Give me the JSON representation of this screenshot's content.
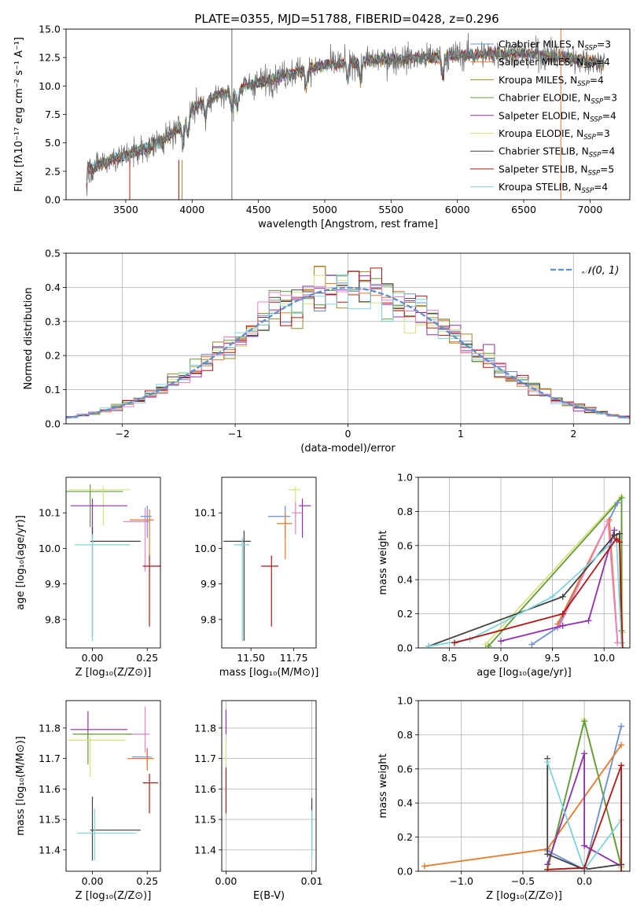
{
  "title": "PLATE=0355, MJD=51788, FIBERID=0428, z=0.296",
  "colors": {
    "chabrier_miles": "#6b8fd6",
    "salpeter_miles": "#e8772a",
    "kroupa_miles": "#9a8a2a",
    "chabrier_elodie": "#5f9a3a",
    "salpeter_elodie": "#8f2fb0",
    "kroupa_elodie": "#d8e07a",
    "chabrier_stelib": "#404040",
    "salpeter_stelib": "#b01414",
    "kroupa_stelib": "#7fd3dc",
    "data": "#6a6a6a",
    "pink": "#ee82c0",
    "gauss": "#5b8fd0"
  },
  "chart_data": [
    {
      "id": "spectrum",
      "type": "line",
      "xlabel": "wavelength [Angstrom, rest frame]",
      "ylabel": "Flux [fλ10⁻¹⁷ erg cm⁻² s⁻¹ A⁻¹]",
      "xlim": [
        3050,
        7300
      ],
      "ylim": [
        0,
        15
      ],
      "xticks": [
        3500,
        4000,
        4500,
        5000,
        5500,
        6000,
        6500,
        7000
      ],
      "yticks": [
        0.0,
        2.5,
        5.0,
        7.5,
        10.0,
        12.5,
        15.0
      ],
      "legend_placement": "upper right",
      "legend": [
        {
          "label": "Chabrier MILES, N",
          "sub": "SSP",
          "suffix": "=3",
          "color": "#6b8fd6"
        },
        {
          "label": "Salpeter MILES, N",
          "sub": "SSP",
          "suffix": "=4",
          "color": "#e8772a"
        },
        {
          "label": "Kroupa MILES, N",
          "sub": "SSP",
          "suffix": "=4",
          "color": "#9a8a2a"
        },
        {
          "label": "Chabrier ELODIE, N",
          "sub": "SSP",
          "suffix": "=3",
          "color": "#5f9a3a"
        },
        {
          "label": "Salpeter ELODIE, N",
          "sub": "SSP",
          "suffix": "=4",
          "color": "#8f2fb0"
        },
        {
          "label": "Kroupa ELODIE, N",
          "sub": "SSP",
          "suffix": "=3",
          "color": "#d8e07a"
        },
        {
          "label": "Chabrier STELIB, N",
          "sub": "SSP",
          "suffix": "=4",
          "color": "#404040"
        },
        {
          "label": "Salpeter STELIB, N",
          "sub": "SSP",
          "suffix": "=5",
          "color": "#b01414"
        },
        {
          "label": "Kroupa STELIB, N",
          "sub": "SSP",
          "suffix": "=4",
          "color": "#7fd3dc"
        }
      ],
      "continuum": [
        [
          3200,
          0
        ],
        [
          3210,
          2.6
        ],
        [
          3300,
          3.1
        ],
        [
          3400,
          3.6
        ],
        [
          3500,
          3.9
        ],
        [
          3600,
          4.3
        ],
        [
          3700,
          4.8
        ],
        [
          3800,
          5.4
        ],
        [
          3900,
          6.2
        ],
        [
          4000,
          8.0
        ],
        [
          4100,
          8.7
        ],
        [
          4200,
          9.2
        ],
        [
          4300,
          9.4
        ],
        [
          4400,
          10.0
        ],
        [
          4500,
          10.3
        ],
        [
          4600,
          10.6
        ],
        [
          4700,
          11.0
        ],
        [
          4800,
          11.3
        ],
        [
          4900,
          11.6
        ],
        [
          5000,
          11.8
        ],
        [
          5200,
          12.1
        ],
        [
          5400,
          12.3
        ],
        [
          5600,
          12.4
        ],
        [
          5800,
          12.5
        ],
        [
          6000,
          12.7
        ],
        [
          6200,
          12.8
        ],
        [
          6400,
          12.9
        ],
        [
          6600,
          12.8
        ],
        [
          6800,
          12.5
        ],
        [
          7000,
          12.2
        ],
        [
          7100,
          12.0
        ]
      ]
    },
    {
      "id": "residuals",
      "type": "histogram",
      "xlabel": "(data-model)/error",
      "ylabel": "Normed distribution",
      "xlim": [
        -2.5,
        2.5
      ],
      "ylim": [
        0,
        0.5
      ],
      "xticks": [
        -2,
        -1,
        0,
        1,
        2
      ],
      "yticks": [
        0.0,
        0.1,
        0.2,
        0.3,
        0.4,
        0.5
      ],
      "legend": "𝒩(0, 1)",
      "legend_placement": "upper right",
      "grid": true
    },
    {
      "id": "age_vs_Z",
      "type": "scatter",
      "xlabel": "Z [log₁₀(Z/Z⊙)]",
      "ylabel": "age  [log₁₀(age/yr)]",
      "xlim": [
        -0.12,
        0.31
      ],
      "ylim": [
        9.72,
        10.2
      ],
      "xticks": [
        0.0,
        0.25
      ],
      "yticks": [
        9.8,
        9.9,
        10.0,
        10.1
      ],
      "points": [
        {
          "x": -0.01,
          "y": 10.16,
          "xerr": [
            0.11,
            0.15
          ],
          "yerr": [
            0.1,
            0.02
          ],
          "color": "#5f9a3a"
        },
        {
          "x": 0.05,
          "y": 10.165,
          "xerr": [
            0.16,
            0.12
          ],
          "yerr": [
            0.1,
            0.01
          ],
          "color": "#d8e07a"
        },
        {
          "x": 0.0,
          "y": 10.12,
          "xerr": [
            0.1,
            0.16
          ],
          "yerr": [
            0.09,
            0.02
          ],
          "color": "#8f2fb0"
        },
        {
          "x": 0.24,
          "y": 10.075,
          "xerr": [
            0.1,
            0.02
          ],
          "yerr": [
            0.14,
            0.04
          ],
          "color": "#ee82c0"
        },
        {
          "x": 0.26,
          "y": 10.08,
          "xerr": [
            0.09,
            0.02
          ],
          "yerr": [
            0.1,
            0.03
          ],
          "color": "#e8772a"
        },
        {
          "x": 0.25,
          "y": 10.09,
          "xerr": [
            0.03,
            0.02
          ],
          "yerr": [
            0.06,
            0.03
          ],
          "color": "#6b8fd6"
        },
        {
          "x": 0.0,
          "y": 10.02,
          "xerr": [
            0.01,
            0.22
          ],
          "yerr": [
            0.27,
            0.04
          ],
          "color": "#404040"
        },
        {
          "x": 0.0,
          "y": 10.01,
          "xerr": [
            0.08,
            0.17
          ],
          "yerr": [
            0.27,
            0.03
          ],
          "color": "#7fd3dc"
        },
        {
          "x": 0.26,
          "y": 9.95,
          "xerr": [
            0.03,
            0.06
          ],
          "yerr": [
            0.17,
            0.03
          ],
          "color": "#b01414"
        }
      ]
    },
    {
      "id": "age_vs_mass",
      "type": "scatter",
      "xlabel": "mass [log₁₀(M/M⊙)]",
      "xlim": [
        11.33,
        11.88
      ],
      "ylim": [
        9.72,
        10.2
      ],
      "xticks": [
        11.5,
        11.75
      ],
      "yticks": [
        9.8,
        9.9,
        10.0,
        10.1
      ],
      "points": [
        {
          "x": 11.76,
          "y": 10.165,
          "xerr": [
            0.04,
            0.03
          ],
          "yerr": [
            0.1,
            0.01
          ],
          "color": "#d8e07a"
        },
        {
          "x": 11.8,
          "y": 10.12,
          "xerr": [
            0.02,
            0.05
          ],
          "yerr": [
            0.09,
            0.02
          ],
          "color": "#8f2fb0"
        },
        {
          "x": 11.76,
          "y": 10.1,
          "xerr": [
            0.02,
            0.04
          ],
          "yerr": [
            0.06,
            0.03
          ],
          "color": "#ee82c0"
        },
        {
          "x": 11.7,
          "y": 10.09,
          "xerr": [
            0.1,
            0.03
          ],
          "yerr": [
            0.06,
            0.03
          ],
          "color": "#6b8fd6"
        },
        {
          "x": 11.7,
          "y": 10.07,
          "xerr": [
            0.05,
            0.04
          ],
          "yerr": [
            0.1,
            0.03
          ],
          "color": "#e8772a"
        },
        {
          "x": 11.46,
          "y": 10.02,
          "xerr": [
            0.12,
            0.04
          ],
          "yerr": [
            0.28,
            0.03
          ],
          "color": "#404040"
        },
        {
          "x": 11.45,
          "y": 10.01,
          "xerr": [
            0.05,
            0.04
          ],
          "yerr": [
            0.27,
            0.02
          ],
          "color": "#7fd3dc"
        },
        {
          "x": 11.62,
          "y": 9.95,
          "xerr": [
            0.06,
            0.04
          ],
          "yerr": [
            0.17,
            0.03
          ],
          "color": "#b01414"
        }
      ]
    },
    {
      "id": "weight_vs_age",
      "type": "line",
      "xlabel": "age  [log₁₀(age/yr)]",
      "ylabel": "mass weight",
      "xlim": [
        8.2,
        10.25
      ],
      "ylim": [
        0,
        1
      ],
      "xticks": [
        8.5,
        9.0,
        9.5,
        10.0
      ],
      "yticks": [
        0.0,
        0.2,
        0.4,
        0.6,
        0.8,
        1.0
      ],
      "series": [
        {
          "color": "#d8e07a",
          "x": [
            8.85,
            10.17,
            10.18
          ],
          "y": [
            0.02,
            0.89,
            0.09
          ]
        },
        {
          "color": "#5f9a3a",
          "x": [
            8.88,
            10.17,
            10.17
          ],
          "y": [
            0.01,
            0.88,
            0.1
          ]
        },
        {
          "color": "#6b8fd6",
          "x": [
            9.3,
            9.55,
            10.13
          ],
          "y": [
            0.02,
            0.12,
            0.85
          ]
        },
        {
          "color": "#e8772a",
          "x": [
            9.55,
            10.05,
            10.13
          ],
          "y": [
            0.14,
            0.75,
            0.03
          ]
        },
        {
          "color": "#ee82c0",
          "x": [
            9.57,
            10.04,
            10.13
          ],
          "y": [
            0.13,
            0.74,
            0.03
          ]
        },
        {
          "color": "#8f2fb0",
          "x": [
            9.0,
            9.6,
            9.85,
            10.1
          ],
          "y": [
            0.04,
            0.13,
            0.16,
            0.69
          ]
        },
        {
          "color": "#404040",
          "x": [
            8.3,
            9.6,
            10.1,
            10.15,
            10.17
          ],
          "y": [
            0.01,
            0.3,
            0.66,
            0.67,
            0.03
          ]
        },
        {
          "color": "#7fd3dc",
          "x": [
            8.3,
            8.7,
            9.5,
            10.12,
            10.17
          ],
          "y": [
            0.01,
            0.05,
            0.3,
            0.64,
            0.03
          ]
        },
        {
          "color": "#b01414",
          "x": [
            8.55,
            9.6,
            10.12,
            10.15,
            10.18
          ],
          "y": [
            0.03,
            0.2,
            0.64,
            0.62,
            0.0
          ]
        }
      ]
    },
    {
      "id": "mass_vs_Z",
      "type": "scatter",
      "xlabel": "Z [log₁₀(Z/Z⊙)]",
      "ylabel": "mass [log₁₀(M/M⊙)]",
      "xlim": [
        -0.12,
        0.31
      ],
      "ylim": [
        11.33,
        11.89
      ],
      "xticks": [
        0.0,
        0.25
      ],
      "yticks": [
        11.4,
        11.5,
        11.6,
        11.7,
        11.8
      ],
      "points": [
        {
          "x": -0.02,
          "y": 11.795,
          "xerr": [
            0.08,
            0.18
          ],
          "yerr": [
            0.04,
            0.06
          ],
          "color": "#8f2fb0"
        },
        {
          "x": 0.24,
          "y": 11.78,
          "xerr": [
            0.08,
            0.02
          ],
          "yerr": [
            0.06,
            0.09
          ],
          "color": "#ee82c0"
        },
        {
          "x": -0.02,
          "y": 11.78,
          "xerr": [
            0.07,
            0.2
          ],
          "yerr": [
            0.1,
            0.01
          ],
          "color": "#5f9a3a"
        },
        {
          "x": -0.01,
          "y": 11.76,
          "xerr": [
            0.1,
            0.16
          ],
          "yerr": [
            0.12,
            0.01
          ],
          "color": "#d8e07a"
        },
        {
          "x": 0.25,
          "y": 11.705,
          "xerr": [
            0.07,
            0.02
          ],
          "yerr": [
            0.03,
            0.03
          ],
          "color": "#6b8fd6"
        },
        {
          "x": 0.25,
          "y": 11.7,
          "xerr": [
            0.09,
            0.03
          ],
          "yerr": [
            0.04,
            0.03
          ],
          "color": "#e8772a"
        },
        {
          "x": 0.26,
          "y": 11.62,
          "xerr": [
            0.03,
            0.04
          ],
          "yerr": [
            0.1,
            0.03
          ],
          "color": "#b01414"
        },
        {
          "x": 0.0,
          "y": 11.465,
          "xerr": [
            0.01,
            0.22
          ],
          "yerr": [
            0.1,
            0.11
          ],
          "color": "#404040"
        },
        {
          "x": 0.01,
          "y": 11.455,
          "xerr": [
            0.08,
            0.19
          ],
          "yerr": [
            0.09,
            0.08
          ],
          "color": "#7fd3dc"
        }
      ]
    },
    {
      "id": "mass_vs_EBV",
      "type": "scatter",
      "xlabel": "E(B-V)",
      "xlim": [
        -0.0005,
        0.0105
      ],
      "ylim": [
        11.33,
        11.89
      ],
      "xticks": [
        0.0,
        0.01
      ],
      "yticks": [
        11.4,
        11.5,
        11.6,
        11.7,
        11.8
      ],
      "points": [
        {
          "x": 0.0,
          "y": 11.81,
          "xerr": [
            0,
            0
          ],
          "yerr": [
            0.03,
            0.05
          ],
          "color": "#8f2fb0"
        },
        {
          "x": 0.0,
          "y": 11.72,
          "xerr": [
            0,
            0
          ],
          "yerr": [
            0.04,
            0.04
          ],
          "color": "#d8e07a"
        },
        {
          "x": 0.0,
          "y": 11.6,
          "xerr": [
            0,
            0
          ],
          "yerr": [
            0.08,
            0.07
          ],
          "color": "#b01414"
        },
        {
          "x": 0.01,
          "y": 11.5,
          "xerr": [
            0,
            0
          ],
          "yerr": [
            0.1,
            0.07
          ],
          "color": "#404040"
        },
        {
          "x": 0.01,
          "y": 11.45,
          "xerr": [
            0,
            0
          ],
          "yerr": [
            0.08,
            0.08
          ],
          "color": "#7fd3dc"
        }
      ]
    },
    {
      "id": "weight_vs_Z",
      "type": "line",
      "xlabel": "Z [log₁₀(Z/Z⊙)]",
      "ylabel": "mass weight",
      "xlim": [
        -1.35,
        0.37
      ],
      "ylim": [
        0,
        1
      ],
      "xticks": [
        -1.0,
        -0.5,
        0.0
      ],
      "yticks": [
        0.0,
        0.2,
        0.4,
        0.6,
        0.8,
        1.0
      ],
      "series": [
        {
          "color": "#d8e07a",
          "x": [
            -0.3,
            0.0,
            0.3
          ],
          "y": [
            0.0,
            0.89,
            0.02
          ]
        },
        {
          "color": "#5f9a3a",
          "x": [
            -0.3,
            0.0,
            0.3
          ],
          "y": [
            0.01,
            0.88,
            0.03
          ]
        },
        {
          "color": "#6b8fd6",
          "x": [
            -0.3,
            0.0,
            0.3
          ],
          "y": [
            0.12,
            0.01,
            0.85
          ]
        },
        {
          "color": "#e8772a",
          "x": [
            -1.3,
            -0.3,
            0.3
          ],
          "y": [
            0.03,
            0.13,
            0.74
          ]
        },
        {
          "color": "#8f2fb0",
          "x": [
            -0.3,
            0.0,
            0.0,
            0.3
          ],
          "y": [
            0.04,
            0.69,
            0.15,
            0.03
          ]
        },
        {
          "color": "#404040",
          "x": [
            -0.3,
            -0.3,
            0.0,
            0.3
          ],
          "y": [
            0.66,
            0.1,
            0.01,
            0.04
          ]
        },
        {
          "color": "#7fd3dc",
          "x": [
            -0.3,
            0.0,
            0.3,
            0.3
          ],
          "y": [
            0.64,
            0.01,
            0.3,
            0.03
          ]
        },
        {
          "color": "#b01414",
          "x": [
            -0.3,
            0.0,
            0.3,
            0.3
          ],
          "y": [
            0.01,
            0.02,
            0.62,
            0.0
          ]
        }
      ]
    }
  ]
}
